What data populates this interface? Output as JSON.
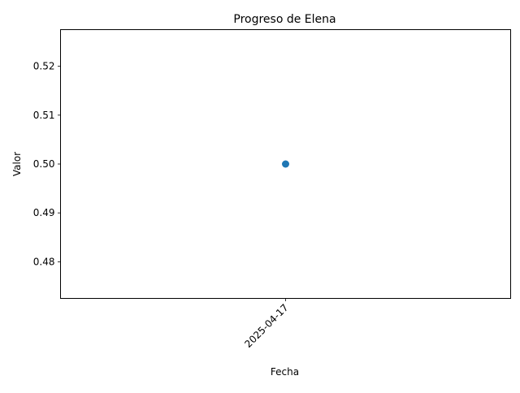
{
  "chart_data": {
    "type": "scatter",
    "title": "Progreso de Elena",
    "xlabel": "Fecha",
    "ylabel": "Valor",
    "x_categories": [
      "2025-04-17"
    ],
    "series": [
      {
        "color": "#1f77b4",
        "points": [
          {
            "x": "2025-04-17",
            "y": 0.5
          }
        ]
      }
    ],
    "ylim": [
      0.4725,
      0.5275
    ],
    "yticks": [
      0.48,
      0.49,
      0.5,
      0.51,
      0.52
    ],
    "ytick_labels": [
      "0.48",
      "0.49",
      "0.50",
      "0.51",
      "0.52"
    ],
    "xticks": [
      "2025-04-17"
    ],
    "xtick_rotation": 45,
    "grid": false,
    "legend": false
  }
}
